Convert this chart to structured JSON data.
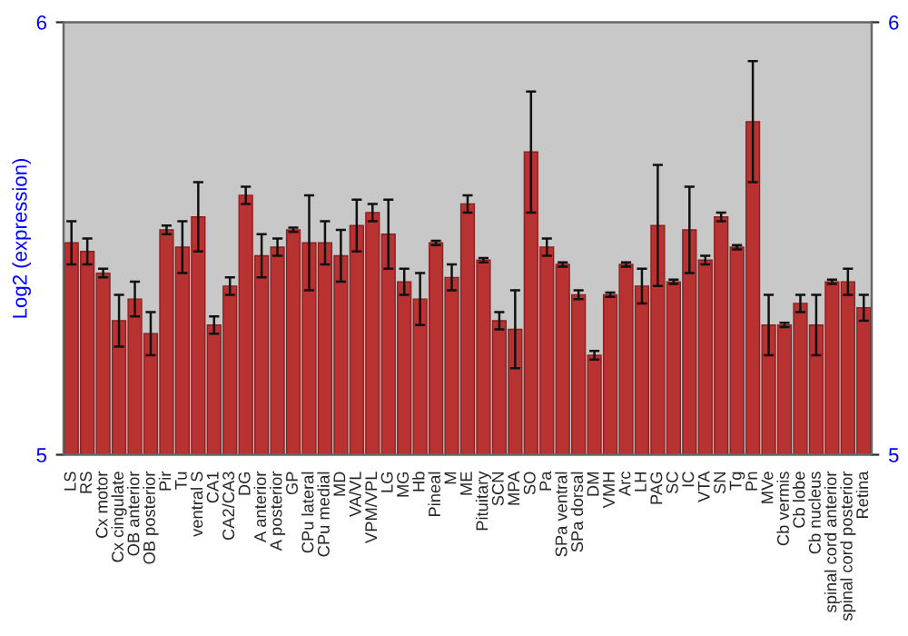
{
  "chart_data": {
    "type": "bar",
    "ylabel": "Log2 (expression)",
    "categories": [
      "LS",
      "RS",
      "Cx motor",
      "Cx cingulate",
      "OB anterior",
      "OB posterior",
      "Pir",
      "Tu",
      "ventral S",
      "CA1",
      "CA2/CA3",
      "DG",
      "A anterior",
      "A posterior",
      "GP",
      "CPu lateral",
      "CPu medial",
      "MD",
      "VA/VL",
      "VPM/VPL",
      "LG",
      "MG",
      "Hb",
      "Pineal",
      "M",
      "ME",
      "Pituitary",
      "SCN",
      "MPA",
      "SO",
      "Pa",
      "SPa ventral",
      "SPa dorsal",
      "DM",
      "VMH",
      "Arc",
      "LH",
      "PAG",
      "SC",
      "IC",
      "VTA",
      "SN",
      "Tg",
      "Pn",
      "MVe",
      "Cb vermis",
      "Cb lobe",
      "Cb nucleus",
      "spinal cord anterior",
      "spinal cord posterior",
      "Retina"
    ],
    "values": [
      5.49,
      5.47,
      5.42,
      5.31,
      5.36,
      5.28,
      5.52,
      5.48,
      5.55,
      5.3,
      5.39,
      5.6,
      5.46,
      5.48,
      5.52,
      5.49,
      5.49,
      5.46,
      5.53,
      5.56,
      5.51,
      5.4,
      5.36,
      5.49,
      5.41,
      5.58,
      5.45,
      5.31,
      5.29,
      5.7,
      5.48,
      5.44,
      5.37,
      5.23,
      5.37,
      5.44,
      5.39,
      5.53,
      5.4,
      5.52,
      5.45,
      5.55,
      5.48,
      5.77,
      5.3,
      5.3,
      5.35,
      5.3,
      5.4,
      5.4,
      5.34
    ],
    "errors": [
      0.05,
      0.03,
      0.01,
      0.06,
      0.04,
      0.05,
      0.01,
      0.06,
      0.08,
      0.02,
      0.02,
      0.02,
      0.05,
      0.02,
      0.005,
      0.11,
      0.05,
      0.06,
      0.06,
      0.02,
      0.08,
      0.03,
      0.06,
      0.005,
      0.03,
      0.02,
      0.005,
      0.02,
      0.09,
      0.14,
      0.02,
      0.005,
      0.01,
      0.01,
      0.005,
      0.005,
      0.04,
      0.14,
      0.005,
      0.1,
      0.01,
      0.01,
      0.005,
      0.14,
      0.07,
      0.005,
      0.02,
      0.07,
      0.005,
      0.03,
      0.03
    ],
    "color": "#b83232",
    "ylim": [
      5,
      6
    ],
    "yticks": [
      5,
      6
    ],
    "y2lim": [
      5,
      6
    ],
    "y2ticks": [
      5,
      6
    ]
  }
}
